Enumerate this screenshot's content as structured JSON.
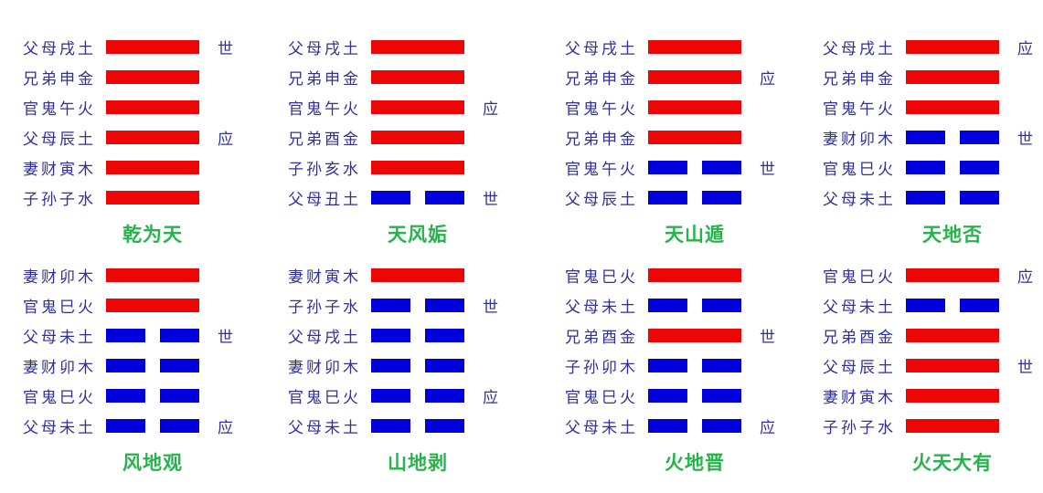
{
  "colors": {
    "yang": "#ee0606",
    "yin": "#0000dd",
    "label": "#2f2f9f",
    "title": "#27b34c",
    "background": "#ffffff"
  },
  "markers": {
    "self": "世",
    "respond": "应"
  },
  "hexagrams": [
    {
      "title": "乾为天",
      "lines": [
        {
          "label": "父母戌土",
          "type": "yang",
          "marker": "世"
        },
        {
          "label": "兄弟申金",
          "type": "yang",
          "marker": ""
        },
        {
          "label": "官鬼午火",
          "type": "yang",
          "marker": ""
        },
        {
          "label": "父母辰土",
          "type": "yang",
          "marker": "应"
        },
        {
          "label": "妻财寅木",
          "type": "yang",
          "marker": ""
        },
        {
          "label": "子孙子水",
          "type": "yang",
          "marker": ""
        }
      ]
    },
    {
      "title": "天风姤",
      "lines": [
        {
          "label": "父母戌土",
          "type": "yang",
          "marker": ""
        },
        {
          "label": "兄弟申金",
          "type": "yang",
          "marker": ""
        },
        {
          "label": "官鬼午火",
          "type": "yang",
          "marker": "应"
        },
        {
          "label": "兄弟酉金",
          "type": "yang",
          "marker": ""
        },
        {
          "label": "子孙亥水",
          "type": "yang",
          "marker": ""
        },
        {
          "label": "父母丑土",
          "type": "yin",
          "marker": "世"
        }
      ]
    },
    {
      "title": "天山遁",
      "lines": [
        {
          "label": "父母戌土",
          "type": "yang",
          "marker": ""
        },
        {
          "label": "兄弟申金",
          "type": "yang",
          "marker": "应"
        },
        {
          "label": "官鬼午火",
          "type": "yang",
          "marker": ""
        },
        {
          "label": "兄弟申金",
          "type": "yang",
          "marker": ""
        },
        {
          "label": "官鬼午火",
          "type": "yin",
          "marker": "世"
        },
        {
          "label": "父母辰土",
          "type": "yin",
          "marker": ""
        }
      ]
    },
    {
      "title": "天地否",
      "lines": [
        {
          "label": "父母戌土",
          "type": "yang",
          "marker": "应"
        },
        {
          "label": "兄弟申金",
          "type": "yang",
          "marker": ""
        },
        {
          "label": "官鬼午火",
          "type": "yang",
          "marker": ""
        },
        {
          "label": "妻财卯木",
          "type": "yin",
          "marker": "世"
        },
        {
          "label": "官鬼巳火",
          "type": "yin",
          "marker": ""
        },
        {
          "label": "父母未土",
          "type": "yin",
          "marker": ""
        }
      ]
    },
    {
      "title": "风地观",
      "lines": [
        {
          "label": "妻财卯木",
          "type": "yang",
          "marker": ""
        },
        {
          "label": "官鬼巳火",
          "type": "yang",
          "marker": ""
        },
        {
          "label": "父母未土",
          "type": "yin",
          "marker": "世"
        },
        {
          "label": "妻财卯木",
          "type": "yin",
          "marker": ""
        },
        {
          "label": "官鬼巳火",
          "type": "yin",
          "marker": ""
        },
        {
          "label": "父母未土",
          "type": "yin",
          "marker": "应"
        }
      ]
    },
    {
      "title": "山地剥",
      "lines": [
        {
          "label": "妻财寅木",
          "type": "yang",
          "marker": ""
        },
        {
          "label": "子孙子水",
          "type": "yin",
          "marker": "世"
        },
        {
          "label": "父母戌土",
          "type": "yin",
          "marker": ""
        },
        {
          "label": "妻财卯木",
          "type": "yin",
          "marker": ""
        },
        {
          "label": "官鬼巳火",
          "type": "yin",
          "marker": "应"
        },
        {
          "label": "父母未土",
          "type": "yin",
          "marker": ""
        }
      ]
    },
    {
      "title": "火地晋",
      "lines": [
        {
          "label": "官鬼巳火",
          "type": "yang",
          "marker": ""
        },
        {
          "label": "父母未土",
          "type": "yin",
          "marker": ""
        },
        {
          "label": "兄弟酉金",
          "type": "yang",
          "marker": "世"
        },
        {
          "label": "子孙卯木",
          "type": "yin",
          "marker": ""
        },
        {
          "label": "官鬼巳火",
          "type": "yin",
          "marker": ""
        },
        {
          "label": "父母未土",
          "type": "yin",
          "marker": "应"
        }
      ]
    },
    {
      "title": "火天大有",
      "lines": [
        {
          "label": "官鬼巳火",
          "type": "yang",
          "marker": "应"
        },
        {
          "label": "父母未土",
          "type": "yin",
          "marker": ""
        },
        {
          "label": "兄弟酉金",
          "type": "yang",
          "marker": ""
        },
        {
          "label": "父母辰土",
          "type": "yang",
          "marker": "世"
        },
        {
          "label": "妻财寅木",
          "type": "yang",
          "marker": ""
        },
        {
          "label": "子孙子水",
          "type": "yang",
          "marker": ""
        }
      ]
    }
  ]
}
